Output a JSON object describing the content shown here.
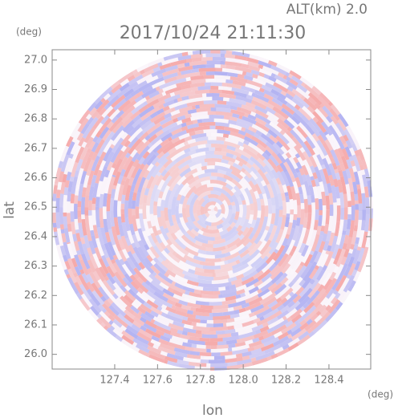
{
  "chart_data": {
    "type": "radar-ppi",
    "title": "2017/10/24 21:11:30",
    "subtitle": "ALT(km) 2.0",
    "y_unit": "(deg)",
    "x_unit": "(deg)",
    "ylabel": "lat",
    "xlabel": "lon",
    "xlim": [
      127.108,
      128.595
    ],
    "ylim": [
      25.95,
      27.035
    ],
    "xticks": [
      127.4,
      127.6,
      127.8,
      {
        "value": 128.0,
        "label": "128.0"
      },
      128.2,
      128.4
    ],
    "yticks": [
      {
        "value": 26.0,
        "label": "26.0"
      },
      26.1,
      26.2,
      26.3,
      26.4,
      26.5,
      26.6,
      26.7,
      26.8,
      26.9,
      {
        "value": 27.0,
        "label": "27.0"
      }
    ]
  }
}
